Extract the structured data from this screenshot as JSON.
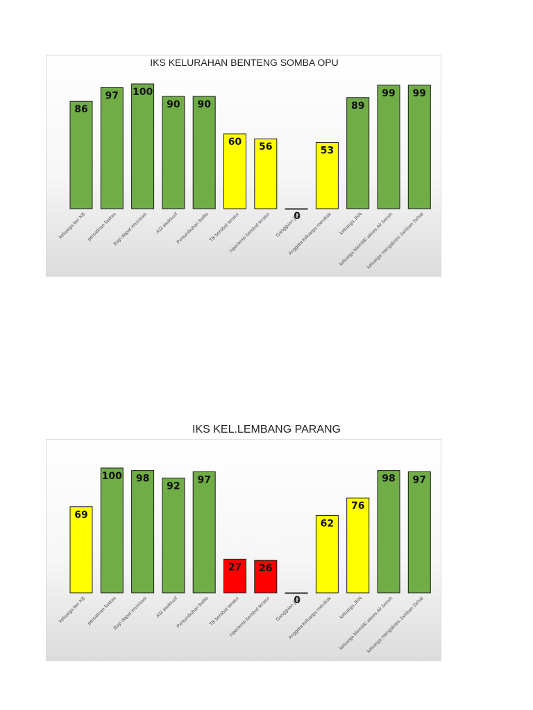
{
  "chart_data": [
    {
      "type": "bar",
      "title": "IKS KELURAHAN BENTENG SOMBA OPU",
      "xlabel": "",
      "ylabel": "",
      "ylim": [
        0,
        100
      ],
      "grid": false,
      "legend": "none",
      "categories": [
        "keluarga ber KB",
        "persalinan faskes",
        "Bayi dapat imunisasi",
        "ASI eksklusif",
        "Pertumbuhan balita",
        "TB berobat teratur",
        "hipertensi berobat teratur",
        "Gangguan jiwa",
        "Anggota keluarga merokok",
        "keluarga JKN",
        "keluarga Memiliki akses Air bersih",
        "keluarga mengakses Jamban Sehat"
      ],
      "values": [
        86,
        97,
        100,
        90,
        90,
        60,
        56,
        0,
        53,
        89,
        99,
        99
      ],
      "colors": [
        "#70ad47",
        "#70ad47",
        "#70ad47",
        "#70ad47",
        "#70ad47",
        "#ffff00",
        "#ffff00",
        "#70ad47",
        "#ffff00",
        "#70ad47",
        "#70ad47",
        "#70ad47"
      ]
    },
    {
      "type": "bar",
      "title": "IKS KEL.LEMBANG PARANG",
      "xlabel": "",
      "ylabel": "",
      "ylim": [
        0,
        100
      ],
      "grid": false,
      "legend": "none",
      "categories": [
        "keluarga ber KB",
        "persalinan faskes",
        "Bayi dapat imunisasi",
        "ASI eksklusif",
        "Pertumbuhan balita",
        "TB berobat teratur",
        "hipertensi berobat teratur",
        "Gangguan jiwa",
        "Anggota keluarga merokok",
        "keluarga JKN",
        "keluarga Memiliki akses Air bersih",
        "keluarga mengakses Jamban Sehat"
      ],
      "values": [
        69,
        100,
        98,
        92,
        97,
        27,
        26,
        0,
        62,
        76,
        98,
        97
      ],
      "colors": [
        "#ffff00",
        "#70ad47",
        "#70ad47",
        "#70ad47",
        "#70ad47",
        "#ff0000",
        "#ff0000",
        "#70ad47",
        "#ffff00",
        "#ffff00",
        "#70ad47",
        "#70ad47"
      ]
    }
  ]
}
